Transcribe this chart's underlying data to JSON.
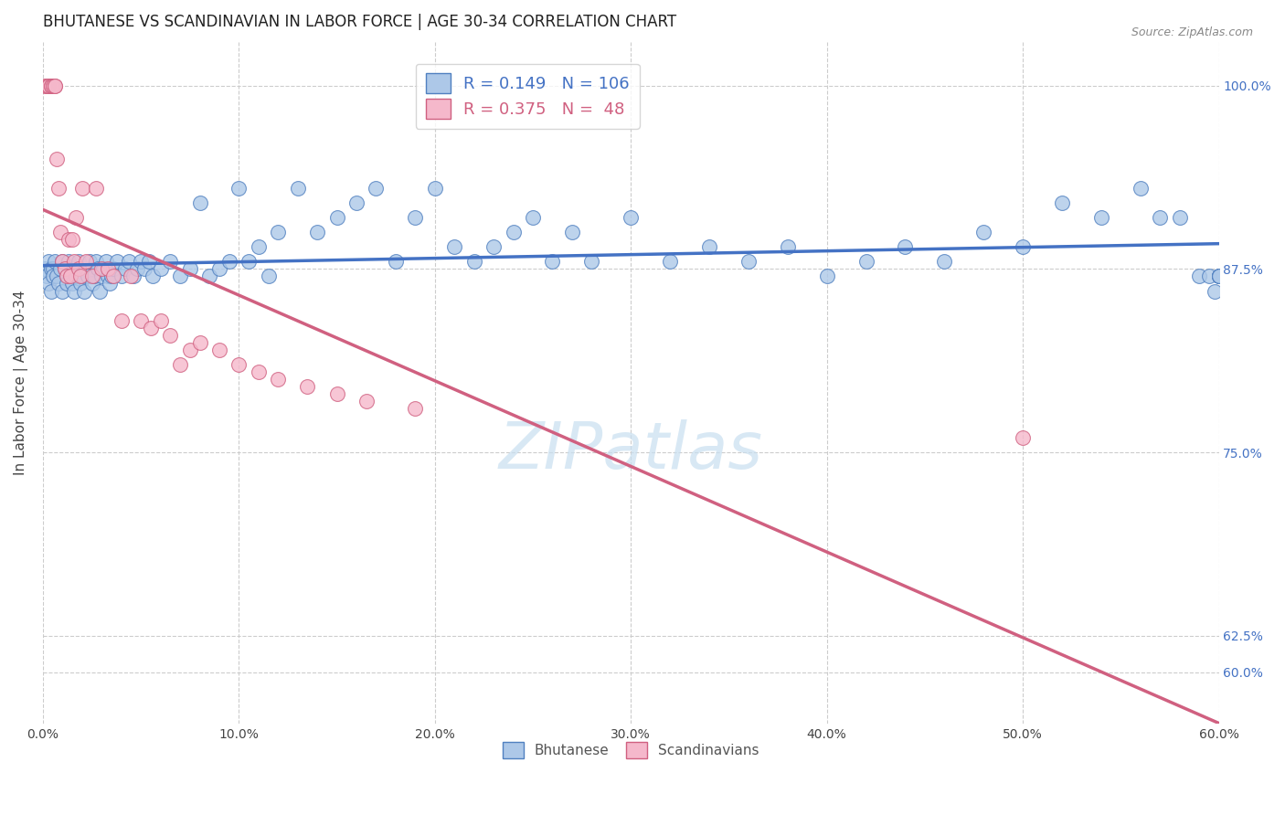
{
  "title": "BHUTANESE VS SCANDINAVIAN IN LABOR FORCE | AGE 30-34 CORRELATION CHART",
  "source": "Source: ZipAtlas.com",
  "ylabel_label": "In Labor Force | Age 30-34",
  "xmin": 0.0,
  "xmax": 0.6,
  "ymin": 0.565,
  "ymax": 1.03,
  "blue_r": 0.149,
  "blue_n": 106,
  "pink_r": 0.375,
  "pink_n": 48,
  "blue_color": "#adc8e8",
  "pink_color": "#f5b8cb",
  "blue_edge_color": "#5080c0",
  "pink_edge_color": "#d06080",
  "blue_line_color": "#4472c4",
  "pink_line_color": "#d06080",
  "watermark_color": "#c8dff0",
  "blue_scatter_x": [
    0.001,
    0.002,
    0.003,
    0.003,
    0.004,
    0.004,
    0.005,
    0.005,
    0.006,
    0.007,
    0.008,
    0.009,
    0.01,
    0.01,
    0.011,
    0.012,
    0.012,
    0.013,
    0.014,
    0.015,
    0.016,
    0.016,
    0.017,
    0.018,
    0.019,
    0.02,
    0.021,
    0.022,
    0.023,
    0.024,
    0.025,
    0.026,
    0.027,
    0.028,
    0.029,
    0.03,
    0.031,
    0.032,
    0.033,
    0.034,
    0.035,
    0.036,
    0.038,
    0.04,
    0.042,
    0.044,
    0.046,
    0.048,
    0.05,
    0.052,
    0.054,
    0.056,
    0.06,
    0.065,
    0.07,
    0.075,
    0.08,
    0.085,
    0.09,
    0.095,
    0.1,
    0.105,
    0.11,
    0.115,
    0.12,
    0.13,
    0.14,
    0.15,
    0.16,
    0.17,
    0.18,
    0.19,
    0.2,
    0.21,
    0.22,
    0.23,
    0.24,
    0.25,
    0.26,
    0.27,
    0.28,
    0.3,
    0.32,
    0.34,
    0.36,
    0.38,
    0.4,
    0.42,
    0.44,
    0.46,
    0.48,
    0.5,
    0.52,
    0.54,
    0.56,
    0.57,
    0.58,
    0.59,
    0.595,
    0.598,
    0.6,
    0.6,
    0.6,
    0.6,
    0.6,
    0.6
  ],
  "blue_scatter_y": [
    0.875,
    0.87,
    0.88,
    0.865,
    0.875,
    0.86,
    0.875,
    0.87,
    0.88,
    0.87,
    0.865,
    0.875,
    0.88,
    0.86,
    0.875,
    0.87,
    0.865,
    0.88,
    0.87,
    0.865,
    0.875,
    0.86,
    0.87,
    0.88,
    0.865,
    0.87,
    0.86,
    0.875,
    0.87,
    0.88,
    0.865,
    0.87,
    0.88,
    0.875,
    0.86,
    0.87,
    0.875,
    0.88,
    0.87,
    0.865,
    0.87,
    0.875,
    0.88,
    0.87,
    0.875,
    0.88,
    0.87,
    0.875,
    0.88,
    0.875,
    0.88,
    0.87,
    0.875,
    0.88,
    0.87,
    0.875,
    0.92,
    0.87,
    0.875,
    0.88,
    0.93,
    0.88,
    0.89,
    0.87,
    0.9,
    0.93,
    0.9,
    0.91,
    0.92,
    0.93,
    0.88,
    0.91,
    0.93,
    0.89,
    0.88,
    0.89,
    0.9,
    0.91,
    0.88,
    0.9,
    0.88,
    0.91,
    0.88,
    0.89,
    0.88,
    0.89,
    0.87,
    0.88,
    0.89,
    0.88,
    0.9,
    0.89,
    0.92,
    0.91,
    0.93,
    0.91,
    0.91,
    0.87,
    0.87,
    0.86,
    0.87,
    0.87,
    0.87,
    0.87,
    0.87,
    0.87
  ],
  "pink_scatter_x": [
    0.001,
    0.002,
    0.003,
    0.003,
    0.004,
    0.004,
    0.005,
    0.005,
    0.006,
    0.006,
    0.007,
    0.008,
    0.009,
    0.01,
    0.011,
    0.012,
    0.013,
    0.014,
    0.015,
    0.016,
    0.017,
    0.018,
    0.019,
    0.02,
    0.022,
    0.025,
    0.027,
    0.03,
    0.033,
    0.036,
    0.04,
    0.045,
    0.05,
    0.055,
    0.06,
    0.065,
    0.07,
    0.075,
    0.08,
    0.09,
    0.1,
    0.11,
    0.12,
    0.135,
    0.15,
    0.165,
    0.19,
    0.5
  ],
  "pink_scatter_y": [
    1.0,
    1.0,
    1.0,
    1.0,
    1.0,
    1.0,
    1.0,
    1.0,
    1.0,
    1.0,
    0.95,
    0.93,
    0.9,
    0.88,
    0.875,
    0.87,
    0.895,
    0.87,
    0.895,
    0.88,
    0.91,
    0.875,
    0.87,
    0.93,
    0.88,
    0.87,
    0.93,
    0.875,
    0.875,
    0.87,
    0.84,
    0.87,
    0.84,
    0.835,
    0.84,
    0.83,
    0.81,
    0.82,
    0.825,
    0.82,
    0.81,
    0.805,
    0.8,
    0.795,
    0.79,
    0.785,
    0.78,
    0.76
  ]
}
